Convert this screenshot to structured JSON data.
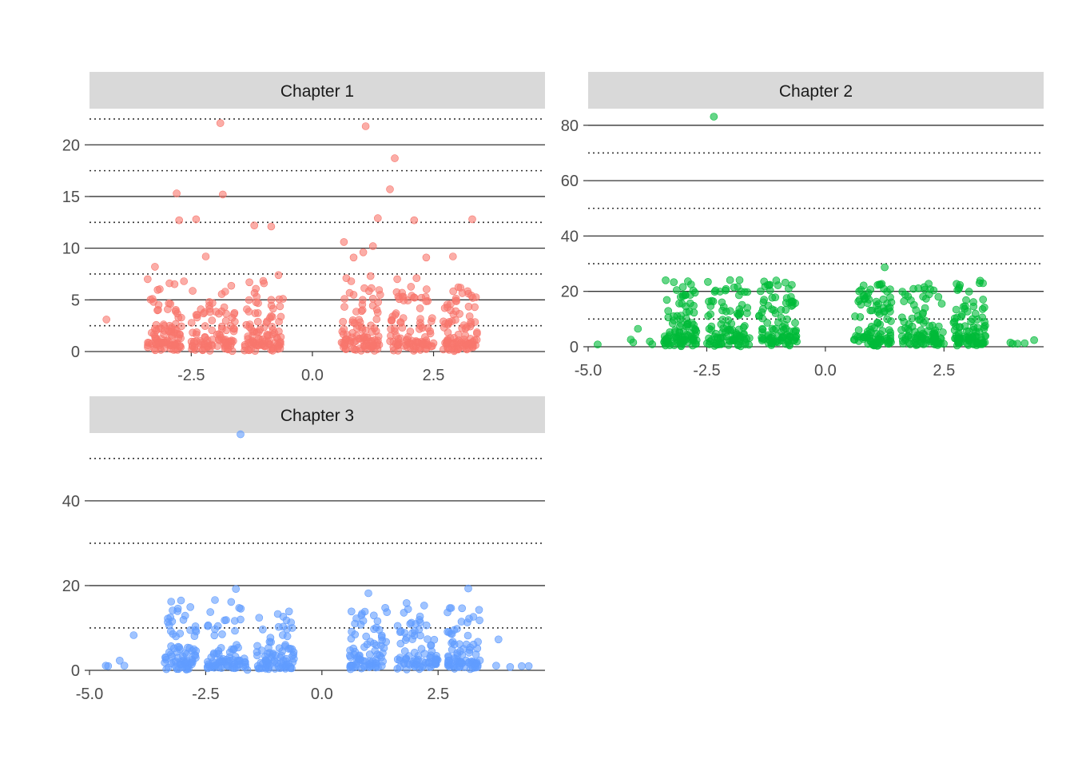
{
  "chart_data": [
    {
      "type": "scatter",
      "title": "Chapter 1",
      "color": "#F8766D",
      "xlim": [
        -4.6,
        4.8
      ],
      "ylim": [
        0,
        23.5
      ],
      "x_ticks": [
        -2.5,
        0.0,
        2.5
      ],
      "x_tick_labels": [
        "-2.5",
        "0.0",
        "2.5"
      ],
      "y_ticks": [
        0,
        5,
        10,
        15,
        20
      ],
      "y_tick_labels": [
        "0",
        "5",
        "10",
        "15",
        "20"
      ],
      "y_minor_dotted": [
        2.5,
        7.5,
        12.5,
        17.5,
        22.5
      ],
      "grid": "horizontal solid at major ticks, dotted at minor",
      "clusters": [
        [
          -3.4,
          -2.7
        ],
        [
          -2.5,
          -1.6
        ],
        [
          -1.4,
          -0.6
        ],
        [
          0.6,
          1.4
        ],
        [
          1.6,
          2.5
        ],
        [
          2.7,
          3.4
        ]
      ],
      "points": [
        [
          -4.25,
          3.1
        ],
        [
          -1.9,
          22.1
        ],
        [
          1.1,
          21.8
        ],
        [
          1.7,
          18.7
        ],
        [
          1.6,
          15.7
        ],
        [
          -2.8,
          15.3
        ],
        [
          -1.85,
          15.2
        ],
        [
          1.35,
          12.9
        ],
        [
          2.1,
          12.7
        ],
        [
          3.3,
          12.8
        ],
        [
          -2.75,
          12.7
        ],
        [
          -2.4,
          12.8
        ],
        [
          -1.2,
          12.2
        ],
        [
          -0.85,
          12.1
        ],
        [
          0.65,
          10.6
        ],
        [
          1.25,
          10.2
        ],
        [
          -2.2,
          9.2
        ],
        [
          0.85,
          9.1
        ],
        [
          1.05,
          9.6
        ],
        [
          2.35,
          9.1
        ],
        [
          2.9,
          9.2
        ],
        [
          -3.25,
          8.2
        ],
        [
          -3.4,
          7.0
        ],
        [
          -2.65,
          6.8
        ],
        [
          -2.95,
          6.6
        ],
        [
          -1.3,
          6.7
        ],
        [
          -1.0,
          6.6
        ],
        [
          -0.7,
          7.4
        ],
        [
          0.7,
          7.1
        ],
        [
          1.2,
          7.3
        ],
        [
          1.75,
          7.0
        ],
        [
          2.15,
          7.1
        ],
        [
          -1.8,
          5.8
        ],
        [
          0.85,
          5.5
        ],
        [
          2.25,
          5.2
        ],
        [
          3.35,
          4.3
        ],
        [
          2.85,
          4.0
        ],
        [
          -3.3,
          5.1
        ],
        [
          -1.15,
          5.3
        ],
        [
          1.4,
          5.5
        ],
        [
          2.05,
          5.4
        ],
        [
          -0.85,
          5.0
        ]
      ],
      "point_count": 560
    },
    {
      "type": "scatter",
      "title": "Chapter 2",
      "color": "#00BA38",
      "xlim": [
        -5.0,
        4.6
      ],
      "ylim": [
        0,
        86
      ],
      "x_ticks": [
        -5.0,
        -2.5,
        0.0,
        2.5
      ],
      "x_tick_labels": [
        "-5.0",
        "-2.5",
        "0.0",
        "2.5"
      ],
      "y_ticks": [
        0,
        20,
        40,
        60,
        80
      ],
      "y_tick_labels": [
        "0",
        "20",
        "40",
        "60",
        "80"
      ],
      "y_minor_dotted": [
        10,
        30,
        50,
        70
      ],
      "grid": "horizontal solid at major ticks, dotted at minor",
      "clusters": [
        [
          -3.4,
          -2.7
        ],
        [
          -2.5,
          -1.6
        ],
        [
          -1.4,
          -0.6
        ],
        [
          0.6,
          1.4
        ],
        [
          1.6,
          2.5
        ],
        [
          2.7,
          3.4
        ]
      ],
      "points": [
        [
          -4.8,
          0.8
        ],
        [
          -4.05,
          1.6
        ],
        [
          -4.1,
          2.6
        ],
        [
          -3.95,
          6.5
        ],
        [
          -3.7,
          1.9
        ],
        [
          -3.65,
          0.9
        ],
        [
          -2.35,
          83.1
        ],
        [
          -3.05,
          18.0
        ],
        [
          -2.85,
          18.7
        ],
        [
          -1.7,
          19.8
        ],
        [
          -1.0,
          22.2
        ],
        [
          1.25,
          28.7
        ],
        [
          3.25,
          23.0
        ],
        [
          3.35,
          14.2
        ],
        [
          0.75,
          15.2
        ],
        [
          0.95,
          13.1
        ],
        [
          1.3,
          15.6
        ],
        [
          1.25,
          12.9
        ],
        [
          1.3,
          10.0
        ],
        [
          3.1,
          10.0
        ],
        [
          2.1,
          14.0
        ],
        [
          2.05,
          11.8
        ],
        [
          1.95,
          11.1
        ],
        [
          -1.05,
          12.1
        ],
        [
          -1.4,
          11.1
        ],
        [
          -1.65,
          12.1
        ],
        [
          -1.8,
          12.0
        ],
        [
          -2.05,
          9.6
        ],
        [
          -2.2,
          8.1
        ],
        [
          4.2,
          1.3
        ],
        [
          4.05,
          1.1
        ],
        [
          3.95,
          1.1
        ],
        [
          3.9,
          1.5
        ],
        [
          4.4,
          2.4
        ]
      ],
      "point_count": 590
    },
    {
      "type": "scatter",
      "title": "Chapter 3",
      "color": "#619CFF",
      "xlim": [
        -5.0,
        4.8
      ],
      "ylim": [
        0,
        56
      ],
      "x_ticks": [
        -5.0,
        -2.5,
        0.0,
        2.5
      ],
      "x_tick_labels": [
        "-5.0",
        "-2.5",
        "0.0",
        "2.5"
      ],
      "y_ticks": [
        0,
        20,
        40
      ],
      "y_tick_labels": [
        "0",
        "20",
        "40"
      ],
      "y_minor_dotted": [
        10,
        30,
        50
      ],
      "grid": "horizontal solid at major ticks, dotted at minor",
      "clusters": [
        [
          -3.4,
          -2.7
        ],
        [
          -2.5,
          -1.6
        ],
        [
          -1.4,
          -0.6
        ],
        [
          0.6,
          1.4
        ],
        [
          1.6,
          2.5
        ],
        [
          2.7,
          3.4
        ]
      ],
      "points": [
        [
          -4.65,
          1.1
        ],
        [
          -4.6,
          1.0
        ],
        [
          -4.35,
          2.3
        ],
        [
          -4.25,
          1.1
        ],
        [
          -4.05,
          8.3
        ],
        [
          -1.75,
          55.7
        ],
        [
          -2.3,
          16.6
        ],
        [
          -1.85,
          19.2
        ],
        [
          -1.75,
          12.0
        ],
        [
          -0.95,
          13.3
        ],
        [
          -0.75,
          9.7
        ],
        [
          -2.3,
          9.7
        ],
        [
          0.85,
          13.0
        ],
        [
          1.0,
          18.2
        ],
        [
          1.7,
          9.2
        ],
        [
          1.95,
          8.8
        ],
        [
          2.2,
          15.3
        ],
        [
          3.15,
          19.3
        ],
        [
          3.8,
          7.3
        ],
        [
          3.75,
          1.1
        ],
        [
          4.05,
          0.8
        ],
        [
          4.3,
          1.0
        ],
        [
          4.45,
          1.0
        ],
        [
          2.35,
          5.9
        ],
        [
          2.85,
          6.1
        ]
      ],
      "point_count": 470
    }
  ]
}
